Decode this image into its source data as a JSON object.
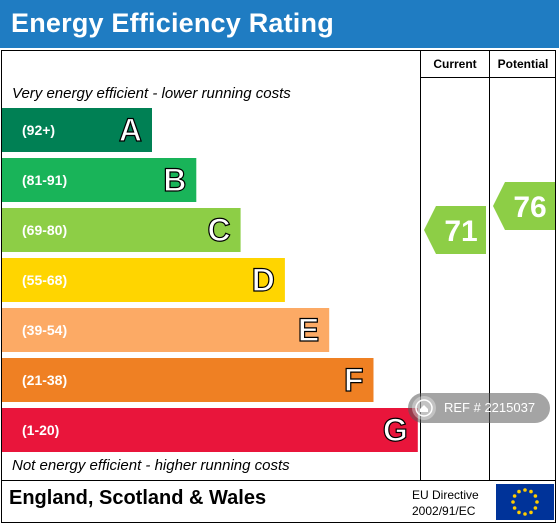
{
  "header": {
    "title": "Energy Efficiency Rating"
  },
  "columns": {
    "current": "Current",
    "potential": "Potential"
  },
  "notes": {
    "top": "Very energy efficient - lower running costs",
    "bottom": "Not energy efficient - higher running costs"
  },
  "footer": {
    "region": "England, Scotland & Wales",
    "directive_line1": "EU Directive",
    "directive_line2": "2002/91/EC"
  },
  "watermark": {
    "text": "REF # 2215037"
  },
  "chart_data": {
    "type": "bar",
    "title": "Energy Efficiency Rating",
    "bands": [
      {
        "range": "(92+)",
        "letter": "A",
        "color": "#008054",
        "level": 1
      },
      {
        "range": "(81-91)",
        "letter": "B",
        "color": "#19b459",
        "level": 2
      },
      {
        "range": "(69-80)",
        "letter": "C",
        "color": "#8dce46",
        "level": 3
      },
      {
        "range": "(55-68)",
        "letter": "D",
        "color": "#ffd500",
        "level": 4
      },
      {
        "range": "(39-54)",
        "letter": "E",
        "color": "#fcaa65",
        "level": 5
      },
      {
        "range": "(21-38)",
        "letter": "F",
        "color": "#ef8023",
        "level": 6
      },
      {
        "range": "(1-20)",
        "letter": "G",
        "color": "#e9153b",
        "level": 7
      }
    ],
    "current": {
      "value": 71,
      "band": "C",
      "color": "#8dce46"
    },
    "potential": {
      "value": 76,
      "band": "C",
      "color": "#8dce46"
    }
  }
}
